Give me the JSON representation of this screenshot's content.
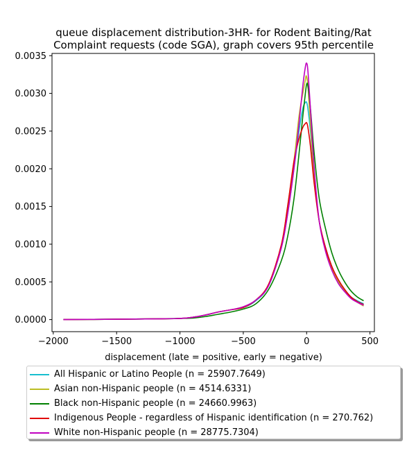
{
  "chart_data": {
    "type": "line",
    "title_line1": "queue displacement distribution-3HR-  for Rodent Baiting/Rat",
    "title_line2": "Complaint  requests (code SGA), graph covers 95th percentile",
    "xlabel": "displacement (late = positive, early = negative)",
    "ylabel": "",
    "xlim": [
      -2010,
      535
    ],
    "ylim": [
      -0.00016,
      0.00353
    ],
    "xticks": [
      -2000,
      -1500,
      -1000,
      -500,
      0,
      500
    ],
    "xtick_labels": [
      "−2000",
      "−1500",
      "−1000",
      "−500",
      "0",
      "500"
    ],
    "yticks": [
      0,
      0.0005,
      0.001,
      0.0015,
      0.002,
      0.0025,
      0.003,
      0.0035
    ],
    "ytick_labels": [
      "0.0000",
      "0.0005",
      "0.0010",
      "0.0015",
      "0.0020",
      "0.0025",
      "0.0030",
      "0.0035"
    ],
    "grid": false,
    "legend_position": "bottom",
    "series": [
      {
        "name": "All Hispanic or Latino People (n = 25907.7649)",
        "color": "#17becf",
        "points": [
          [
            -1920,
            0
          ],
          [
            -1500,
            5e-06
          ],
          [
            -1200,
            1e-05
          ],
          [
            -1000,
            1.5e-05
          ],
          [
            -900,
            3e-05
          ],
          [
            -800,
            6e-05
          ],
          [
            -700,
            0.0001
          ],
          [
            -600,
            0.00013
          ],
          [
            -500,
            0.00016
          ],
          [
            -400,
            0.00025
          ],
          [
            -300,
            0.00045
          ],
          [
            -200,
            0.00095
          ],
          [
            -150,
            0.0014
          ],
          [
            -100,
            0.002
          ],
          [
            -60,
            0.0025
          ],
          [
            -30,
            0.0028
          ],
          [
            -10,
            0.00288
          ],
          [
            0,
            0.00288
          ],
          [
            10,
            0.0028
          ],
          [
            30,
            0.0025
          ],
          [
            60,
            0.0019
          ],
          [
            100,
            0.0013
          ],
          [
            150,
            0.00095
          ],
          [
            200,
            0.0007
          ],
          [
            250,
            0.00052
          ],
          [
            300,
            0.0004
          ],
          [
            350,
            0.0003
          ],
          [
            400,
            0.00025
          ],
          [
            450,
            0.00021
          ]
        ]
      },
      {
        "name": "Asian non-Hispanic people (n = 4514.6331)",
        "color": "#bcbd22",
        "points": [
          [
            -1920,
            0
          ],
          [
            -1500,
            5e-06
          ],
          [
            -1200,
            1e-05
          ],
          [
            -1000,
            1.5e-05
          ],
          [
            -900,
            3e-05
          ],
          [
            -800,
            6e-05
          ],
          [
            -700,
            0.0001
          ],
          [
            -600,
            0.00013
          ],
          [
            -500,
            0.00017
          ],
          [
            -400,
            0.00026
          ],
          [
            -300,
            0.00046
          ],
          [
            -200,
            0.00098
          ],
          [
            -150,
            0.0015
          ],
          [
            -100,
            0.0021
          ],
          [
            -60,
            0.0027
          ],
          [
            -30,
            0.003
          ],
          [
            -10,
            0.00318
          ],
          [
            -2,
            0.00323
          ],
          [
            10,
            0.0031
          ],
          [
            30,
            0.0026
          ],
          [
            60,
            0.0019
          ],
          [
            100,
            0.0013
          ],
          [
            150,
            0.00093
          ],
          [
            200,
            0.00068
          ],
          [
            250,
            0.0005
          ],
          [
            300,
            0.00038
          ],
          [
            350,
            0.00029
          ],
          [
            400,
            0.00023
          ],
          [
            450,
            0.00018
          ]
        ]
      },
      {
        "name": "Black non-Hispanic people (n = 24660.9963)",
        "color": "#008000",
        "points": [
          [
            -1920,
            0
          ],
          [
            -1500,
            5e-06
          ],
          [
            -1200,
            1e-05
          ],
          [
            -1000,
            1.5e-05
          ],
          [
            -900,
            2e-05
          ],
          [
            -800,
            4e-05
          ],
          [
            -700,
            7e-05
          ],
          [
            -600,
            0.0001
          ],
          [
            -500,
            0.00014
          ],
          [
            -400,
            0.00021
          ],
          [
            -300,
            0.0004
          ],
          [
            -200,
            0.00078
          ],
          [
            -150,
            0.0011
          ],
          [
            -100,
            0.0016
          ],
          [
            -60,
            0.0022
          ],
          [
            -30,
            0.0027
          ],
          [
            -10,
            0.003
          ],
          [
            0,
            0.00312
          ],
          [
            10,
            0.0031
          ],
          [
            30,
            0.0028
          ],
          [
            60,
            0.0022
          ],
          [
            100,
            0.0016
          ],
          [
            150,
            0.0012
          ],
          [
            200,
            0.00088
          ],
          [
            250,
            0.00066
          ],
          [
            300,
            0.0005
          ],
          [
            350,
            0.00038
          ],
          [
            400,
            0.0003
          ],
          [
            450,
            0.00025
          ]
        ]
      },
      {
        "name": "Indigenous People - regardless of Hispanic identification (n = 270.762)",
        "color": "#e00000",
        "points": [
          [
            -1920,
            0
          ],
          [
            -1500,
            5e-06
          ],
          [
            -1200,
            1e-05
          ],
          [
            -1000,
            1.5e-05
          ],
          [
            -900,
            3e-05
          ],
          [
            -800,
            6e-05
          ],
          [
            -700,
            0.0001
          ],
          [
            -600,
            0.00013
          ],
          [
            -500,
            0.00016
          ],
          [
            -400,
            0.00026
          ],
          [
            -300,
            0.00047
          ],
          [
            -200,
            0.00099
          ],
          [
            -150,
            0.0015
          ],
          [
            -100,
            0.0021
          ],
          [
            -60,
            0.0024
          ],
          [
            -30,
            0.00255
          ],
          [
            -10,
            0.0026
          ],
          [
            0,
            0.00261
          ],
          [
            10,
            0.00255
          ],
          [
            30,
            0.0023
          ],
          [
            60,
            0.0018
          ],
          [
            100,
            0.0013
          ],
          [
            150,
            0.00095
          ],
          [
            200,
            0.0007
          ],
          [
            250,
            0.00053
          ],
          [
            300,
            0.0004
          ],
          [
            350,
            0.0003
          ],
          [
            400,
            0.00024
          ],
          [
            450,
            0.0002
          ]
        ]
      },
      {
        "name": "White non-Hispanic people (n = 28775.7304)",
        "color": "#c000c0",
        "points": [
          [
            -1920,
            0
          ],
          [
            -1500,
            5e-06
          ],
          [
            -1200,
            1e-05
          ],
          [
            -1000,
            1.5e-05
          ],
          [
            -900,
            3e-05
          ],
          [
            -800,
            6e-05
          ],
          [
            -700,
            0.0001
          ],
          [
            -600,
            0.00013
          ],
          [
            -500,
            0.00017
          ],
          [
            -400,
            0.00026
          ],
          [
            -300,
            0.00045
          ],
          [
            -200,
            0.00095
          ],
          [
            -150,
            0.0014
          ],
          [
            -100,
            0.002
          ],
          [
            -60,
            0.0026
          ],
          [
            -30,
            0.0031
          ],
          [
            -10,
            0.00335
          ],
          [
            0,
            0.0034
          ],
          [
            10,
            0.0033
          ],
          [
            30,
            0.0028
          ],
          [
            60,
            0.002
          ],
          [
            100,
            0.0013
          ],
          [
            150,
            0.0009
          ],
          [
            200,
            0.00065
          ],
          [
            250,
            0.00048
          ],
          [
            300,
            0.00037
          ],
          [
            350,
            0.00028
          ],
          [
            400,
            0.00023
          ],
          [
            450,
            0.00019
          ]
        ]
      }
    ]
  }
}
